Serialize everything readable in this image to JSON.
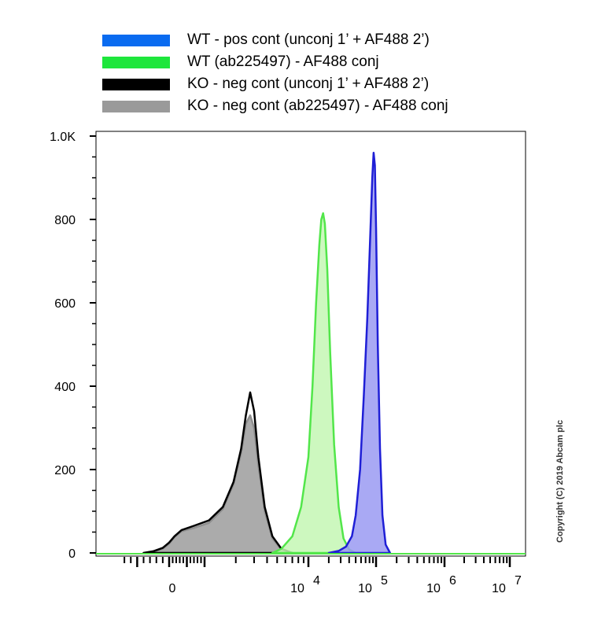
{
  "chart_data": {
    "type": "area",
    "title": "",
    "xlabel": "",
    "ylabel": "",
    "x_scale": "biexponential",
    "ylim": [
      0,
      1000
    ],
    "grid": false,
    "legend_position": "top",
    "y_ticks": [
      {
        "value": 0,
        "label": "0"
      },
      {
        "value": 200,
        "label": "200"
      },
      {
        "value": 400,
        "label": "400"
      },
      {
        "value": 600,
        "label": "600"
      },
      {
        "value": 800,
        "label": "800"
      },
      {
        "value": 1000,
        "label": "1.0K"
      }
    ],
    "x_ticks": [
      {
        "value": 0,
        "base": "0",
        "exp": ""
      },
      {
        "value": 10000,
        "base": "10",
        "exp": "4"
      },
      {
        "value": 100000,
        "base": "10",
        "exp": "5"
      },
      {
        "value": 1000000,
        "base": "10",
        "exp": "6"
      },
      {
        "value": 10000000,
        "base": "10",
        "exp": "7"
      }
    ],
    "series": [
      {
        "name": "WT - pos cont (unconj 1’ + AF488 2’)",
        "color": "#1f1fd6",
        "fill": "#9a9af2",
        "legend_color": "#0a6bf0",
        "x": [
          20000,
          28000,
          36000,
          44000,
          50000,
          58000,
          66000,
          74000,
          82000,
          88000,
          92000,
          96000,
          100000,
          106000,
          114000,
          124000,
          138000,
          160000
        ],
        "y": [
          0,
          5,
          15,
          40,
          90,
          200,
          380,
          560,
          760,
          900,
          960,
          930,
          780,
          500,
          250,
          90,
          20,
          0
        ]
      },
      {
        "name": "WT (ab225497) - AF488 conj",
        "color": "#52e64a",
        "fill": "#c4f7b4",
        "legend_color": "#1ee63c",
        "x": [
          4500,
          5500,
          7000,
          8500,
          10000,
          11500,
          13000,
          14500,
          15500,
          16500,
          17500,
          19000,
          21000,
          24000,
          28000,
          33000,
          40000,
          50000
        ],
        "y": [
          0,
          10,
          40,
          110,
          230,
          400,
          600,
          740,
          800,
          815,
          790,
          680,
          480,
          260,
          110,
          35,
          8,
          0
        ]
      },
      {
        "name": "KO - neg cont (unconj 1’ + AF488 2’)",
        "color": "#000000",
        "fill": "none",
        "legend_color": "#000000",
        "x": [
          -400,
          -250,
          -100,
          0,
          150,
          350,
          700,
          1100,
          1500,
          1900,
          2250,
          2500,
          2750,
          3000,
          3300,
          3800,
          4500,
          5500,
          7000
        ],
        "y": [
          0,
          4,
          12,
          25,
          40,
          55,
          65,
          78,
          110,
          170,
          250,
          330,
          385,
          340,
          230,
          110,
          40,
          10,
          0
        ]
      },
      {
        "name": "KO - neg cont (ab225497) - AF488 conj",
        "color": "#8f8f8f",
        "fill": "#a6a6a6",
        "legend_color": "#9a9a9a",
        "x": [
          -400,
          -250,
          -100,
          0,
          150,
          350,
          700,
          1100,
          1500,
          1900,
          2250,
          2500,
          2750,
          3000,
          3300,
          3800,
          4500,
          5500,
          7000
        ],
        "y": [
          0,
          3,
          10,
          22,
          38,
          52,
          60,
          72,
          105,
          165,
          240,
          310,
          330,
          300,
          210,
          100,
          35,
          8,
          0
        ]
      }
    ]
  },
  "copyright": "Copyright (C) 2019 Abcam plc"
}
